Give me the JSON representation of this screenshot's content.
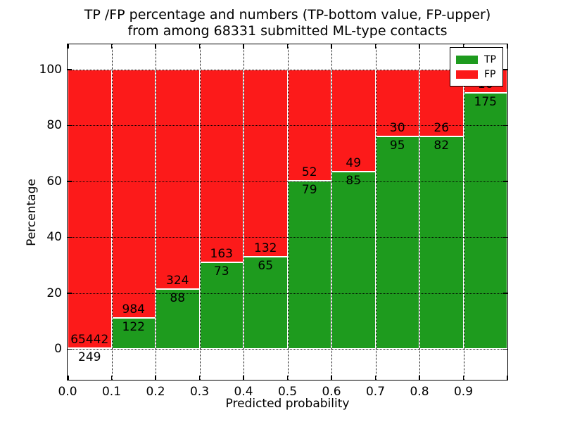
{
  "chart_data": {
    "type": "bar",
    "stacked": true,
    "orientation": "vertical",
    "title_line1": "TP /FP percentage and numbers (TP-bottom value, FP-upper)",
    "title_line2": "from among 68331 submitted ML-type contacts",
    "xlabel": "Predicted probability",
    "ylabel": "Percentage",
    "xlim": [
      0.0,
      1.0
    ],
    "ylim": [
      -11,
      109
    ],
    "grid": true,
    "grid_style": "dotted",
    "legend_position": "upper right",
    "x_ticks": [
      {
        "value": 0.0,
        "label": "0.0"
      },
      {
        "value": 0.1,
        "label": "0.1"
      },
      {
        "value": 0.2,
        "label": "0.2"
      },
      {
        "value": 0.3,
        "label": "0.3"
      },
      {
        "value": 0.4,
        "label": "0.4"
      },
      {
        "value": 0.5,
        "label": "0.5"
      },
      {
        "value": 0.6,
        "label": "0.6"
      },
      {
        "value": 0.7,
        "label": "0.7"
      },
      {
        "value": 0.8,
        "label": "0.8"
      },
      {
        "value": 0.9,
        "label": "0.9"
      },
      {
        "value": 1.0,
        "label": ""
      }
    ],
    "y_ticks": [
      {
        "value": 0,
        "label": "0"
      },
      {
        "value": 20,
        "label": "20"
      },
      {
        "value": 40,
        "label": "40"
      },
      {
        "value": 60,
        "label": "60"
      },
      {
        "value": 80,
        "label": "80"
      },
      {
        "value": 100,
        "label": "100"
      }
    ],
    "bins": [
      {
        "range": "0.0-0.1",
        "tp": 249,
        "fp": 65442,
        "tp_pct": 0.4
      },
      {
        "range": "0.1-0.2",
        "tp": 122,
        "fp": 984,
        "tp_pct": 11.0
      },
      {
        "range": "0.2-0.3",
        "tp": 88,
        "fp": 324,
        "tp_pct": 21.4
      },
      {
        "range": "0.3-0.4",
        "tp": 73,
        "fp": 163,
        "tp_pct": 30.9
      },
      {
        "range": "0.4-0.5",
        "tp": 65,
        "fp": 132,
        "tp_pct": 33.0
      },
      {
        "range": "0.5-0.6",
        "tp": 79,
        "fp": 52,
        "tp_pct": 60.3
      },
      {
        "range": "0.6-0.7",
        "tp": 85,
        "fp": 49,
        "tp_pct": 63.4
      },
      {
        "range": "0.7-0.8",
        "tp": 95,
        "fp": 30,
        "tp_pct": 76.0
      },
      {
        "range": "0.8-0.9",
        "tp": 82,
        "fp": 26,
        "tp_pct": 75.9
      },
      {
        "range": "0.9-1.0",
        "tp": 175,
        "fp": 16,
        "tp_pct": 91.6
      }
    ],
    "legend": [
      {
        "label": "TP",
        "color": "#1e9b1e"
      },
      {
        "label": "FP",
        "color": "#fc1a1a"
      }
    ],
    "colors": {
      "tp": "#1e9b1e",
      "fp": "#fc1a1a",
      "grid": "#000000",
      "text": "#000000",
      "background": "#ffffff"
    }
  }
}
